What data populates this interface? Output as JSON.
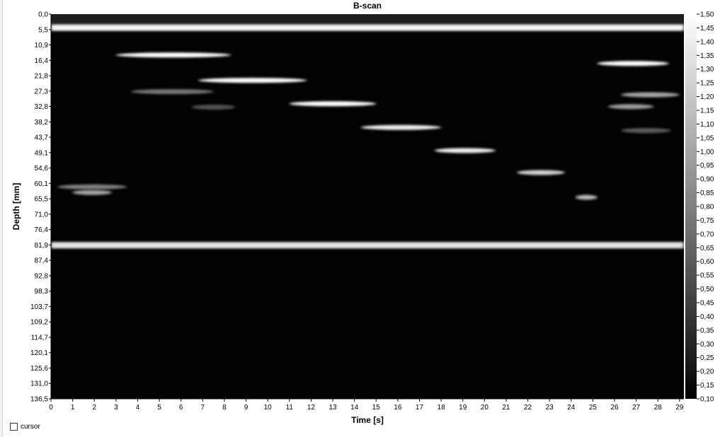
{
  "window": {
    "title": "B-scan"
  },
  "controls": {
    "cursor_label": "cursor",
    "cursor_checked": false
  },
  "colorbar": {
    "ticks": [
      "1,50",
      "1,45",
      "1,40",
      "1,35",
      "1,30",
      "1,25",
      "1,20",
      "1,15",
      "1,10",
      "1,05",
      "1,00",
      "0,95",
      "0,90",
      "0,85",
      "0,80",
      "0,75",
      "0,70",
      "0,65",
      "0,60",
      "0,55",
      "0,50",
      "0,45",
      "0,40",
      "0,35",
      "0,30",
      "0,25",
      "0,20",
      "0,15",
      "0,10"
    ],
    "min": 0.1,
    "max": 1.5
  },
  "chart_data": {
    "type": "heatmap",
    "title": "B-scan",
    "xlabel": "Time [s]",
    "ylabel": "Depth [mm]",
    "xlim": [
      0,
      29.2
    ],
    "ylim": [
      0,
      136.5
    ],
    "x_ticks": [
      "0",
      "1",
      "2",
      "3",
      "4",
      "5",
      "6",
      "7",
      "8",
      "9",
      "10",
      "11",
      "12",
      "13",
      "14",
      "15",
      "16",
      "17",
      "18",
      "19",
      "20",
      "21",
      "22",
      "23",
      "24",
      "25",
      "26",
      "27",
      "28",
      "29"
    ],
    "y_ticks": [
      "0,0",
      "5,5",
      "10,9",
      "16,4",
      "21,8",
      "27,3",
      "32,8",
      "38,2",
      "43,7",
      "49,1",
      "54,6",
      "60,1",
      "65,5",
      "71,0",
      "76,4",
      "81,9",
      "87,4",
      "92,8",
      "98,3",
      "103,7",
      "109,2",
      "114,7",
      "120,1",
      "125,6",
      "131,0",
      "136,5"
    ],
    "colorscale": "grayscale",
    "value_range": [
      0.1,
      1.5
    ],
    "features": [
      {
        "t0": 0,
        "t1": 29.2,
        "depth": 4.8,
        "intensity": 1.45
      },
      {
        "t0": 0,
        "t1": 29.2,
        "depth": 82.0,
        "intensity": 1.35
      },
      {
        "t0": 3.0,
        "t1": 8.3,
        "depth": 14.5,
        "intensity": 1.5
      },
      {
        "t0": 6.8,
        "t1": 11.8,
        "depth": 23.5,
        "intensity": 1.5
      },
      {
        "t0": 3.7,
        "t1": 7.5,
        "depth": 27.5,
        "intensity": 0.75
      },
      {
        "t0": 11.0,
        "t1": 15.0,
        "depth": 31.8,
        "intensity": 1.5
      },
      {
        "t0": 14.3,
        "t1": 18.0,
        "depth": 40.2,
        "intensity": 1.4
      },
      {
        "t0": 17.7,
        "t1": 20.5,
        "depth": 48.4,
        "intensity": 1.4
      },
      {
        "t0": 21.5,
        "t1": 23.7,
        "depth": 56.2,
        "intensity": 1.25
      },
      {
        "t0": 0.3,
        "t1": 3.5,
        "depth": 61.3,
        "intensity": 0.8
      },
      {
        "t0": 1.0,
        "t1": 2.8,
        "depth": 63.3,
        "intensity": 1.0
      },
      {
        "t0": 24.2,
        "t1": 25.2,
        "depth": 65.0,
        "intensity": 1.1
      },
      {
        "t0": 25.2,
        "t1": 28.5,
        "depth": 17.5,
        "intensity": 1.5
      },
      {
        "t0": 26.3,
        "t1": 29.0,
        "depth": 28.6,
        "intensity": 1.0
      },
      {
        "t0": 25.7,
        "t1": 27.8,
        "depth": 32.8,
        "intensity": 0.95
      },
      {
        "t0": 26.3,
        "t1": 28.6,
        "depth": 41.3,
        "intensity": 0.6
      },
      {
        "t0": 6.5,
        "t1": 8.5,
        "depth": 33.0,
        "intensity": 0.55
      }
    ]
  }
}
